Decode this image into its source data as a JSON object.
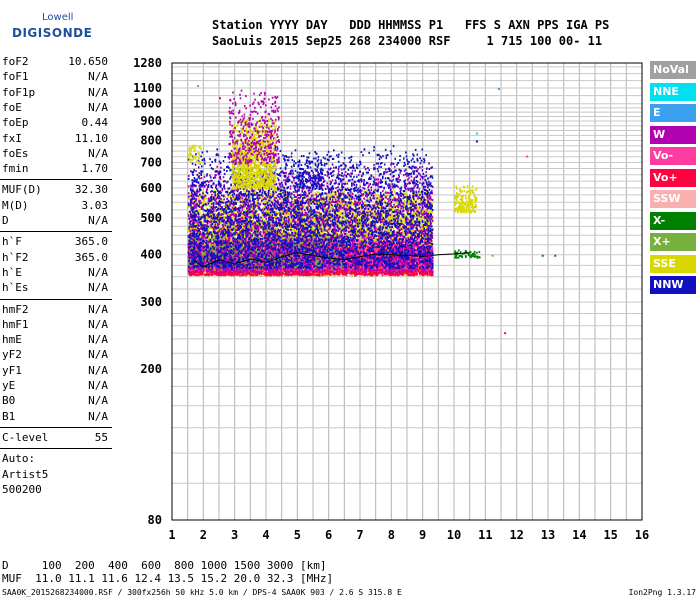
{
  "logo": {
    "line1": "Lowell",
    "line2": "DIGISONDE"
  },
  "header": {
    "line1": "Station YYYY DAY   DDD HHMMSS P1   FFS S AXN PPS IGA PS",
    "line2": "SaoLuis 2015 Sep25 268 234000 RSF     1 715 100 00- 11"
  },
  "params": {
    "group1": [
      {
        "k": "foF2",
        "v": "10.650"
      },
      {
        "k": "foF1",
        "v": "N/A"
      },
      {
        "k": "foF1p",
        "v": "N/A"
      },
      {
        "k": "foE",
        "v": "N/A"
      },
      {
        "k": "foEp",
        "v": "0.44"
      },
      {
        "k": "fxI",
        "v": "11.10"
      },
      {
        "k": "foEs",
        "v": "N/A"
      },
      {
        "k": "fmin",
        "v": "1.70"
      }
    ],
    "group2": [
      {
        "k": "MUF(D)",
        "v": "32.30"
      },
      {
        "k": "M(D)",
        "v": "3.03"
      },
      {
        "k": "D",
        "v": "N/A"
      }
    ],
    "group3": [
      {
        "k": "h`F",
        "v": "365.0"
      },
      {
        "k": "h`F2",
        "v": "365.0"
      },
      {
        "k": "h`E",
        "v": "N/A"
      },
      {
        "k": "h`Es",
        "v": "N/A"
      }
    ],
    "group4": [
      {
        "k": "hmF2",
        "v": "N/A"
      },
      {
        "k": "hmF1",
        "v": "N/A"
      },
      {
        "k": "hmE",
        "v": "N/A"
      },
      {
        "k": "yF2",
        "v": "N/A"
      },
      {
        "k": "yF1",
        "v": "N/A"
      },
      {
        "k": "yE",
        "v": "N/A"
      },
      {
        "k": "B0",
        "v": "N/A"
      },
      {
        "k": "B1",
        "v": "N/A"
      }
    ],
    "clevel": {
      "k": "C-level",
      "v": "55"
    },
    "auto": [
      "Auto:",
      "Artist5",
      "500200"
    ]
  },
  "legend": [
    {
      "label": "NoVal",
      "color": "#a0a0a0"
    },
    {
      "label": "NNE",
      "color": "#00e0f0"
    },
    {
      "label": "E",
      "color": "#3aa0f0"
    },
    {
      "label": "W",
      "color": "#b000b0"
    },
    {
      "label": "Vo-",
      "color": "#ff3ca0"
    },
    {
      "label": "Vo+",
      "color": "#ff0040"
    },
    {
      "label": "SSW",
      "color": "#f8b0b0"
    },
    {
      "label": "X-",
      "color": "#008000"
    },
    {
      "label": "X+",
      "color": "#78b040"
    },
    {
      "label": "SSE",
      "color": "#d8d800"
    },
    {
      "label": "NNW",
      "color": "#1010c0"
    }
  ],
  "footer": {
    "line1": "D     100  200  400  600  800 1000 1500 3000 [km]",
    "line2": "MUF  11.0 11.1 11.6 12.4 13.5 15.2 20.0 32.3 [MHz]",
    "line3": "SAA0K_2015268234000.RSF / 300fx256h 50 kHz 5.0 km / DPS-4 SAA0K 903 / 2.6 S 315.8 E",
    "version": "Ion2Png 1.3.17"
  },
  "chart_data": {
    "type": "scatter",
    "xlabel": "",
    "ylabel": "",
    "xlim": [
      1,
      16
    ],
    "x_ticks": [
      1,
      2,
      3,
      4,
      5,
      6,
      7,
      8,
      9,
      10,
      11,
      12,
      13,
      14,
      15,
      16
    ],
    "ylim": [
      80,
      1280
    ],
    "y_ticks": [
      80,
      200,
      300,
      400,
      500,
      600,
      700,
      800,
      900,
      1000,
      1100,
      1280
    ],
    "y_scale": "log",
    "grid": true,
    "legend_placement": "right",
    "clusters": [
      {
        "mode": "SSE",
        "x": [
          1.5,
          9.3
        ],
        "y": [
          355,
          600
        ],
        "density": 0.9
      },
      {
        "mode": "Vo+",
        "x": [
          1.5,
          9.3
        ],
        "y": [
          355,
          430
        ],
        "density": 0.8
      },
      {
        "mode": "Vo-",
        "x": [
          1.5,
          9.3
        ],
        "y": [
          365,
          450
        ],
        "density": 0.6
      },
      {
        "mode": "X+",
        "x": [
          1.5,
          6.5
        ],
        "y": [
          370,
          460
        ],
        "density": 0.5
      },
      {
        "mode": "W",
        "x": [
          1.5,
          9.3
        ],
        "y": [
          360,
          700
        ],
        "density": 0.25
      },
      {
        "mode": "NNW",
        "x": [
          1.5,
          9.3
        ],
        "y": [
          370,
          780
        ],
        "density": 0.25
      },
      {
        "mode": "SSE",
        "x": [
          2.9,
          4.3
        ],
        "y": [
          600,
          920
        ],
        "density": 0.6
      },
      {
        "mode": "W",
        "x": [
          2.8,
          4.4
        ],
        "y": [
          700,
          1100
        ],
        "density": 0.2
      },
      {
        "mode": "NNW",
        "x": [
          5.0,
          5.8
        ],
        "y": [
          600,
          720
        ],
        "density": 0.3
      },
      {
        "mode": "SSE",
        "x": [
          10.0,
          10.7
        ],
        "y": [
          520,
          620
        ],
        "density": 0.5
      },
      {
        "mode": "X-",
        "x": [
          10.0,
          10.8
        ],
        "y": [
          395,
          415
        ],
        "density": 0.5
      },
      {
        "mode": "SSE",
        "x": [
          1.5,
          1.9
        ],
        "y": [
          700,
          790
        ],
        "density": 0.3
      }
    ],
    "trace": {
      "mode": "black",
      "x": [
        1.7,
        2.0,
        2.5,
        3.0,
        3.5,
        4.0,
        4.5,
        5.0,
        5.5,
        6.0,
        6.5,
        7.0,
        7.5,
        8.0,
        8.5,
        9.0,
        9.5,
        10.0,
        10.5
      ],
      "y": [
        385,
        372,
        388,
        378,
        390,
        382,
        395,
        405,
        398,
        392,
        388,
        395,
        402,
        400,
        398,
        396,
        400,
        402,
        405
      ]
    }
  }
}
